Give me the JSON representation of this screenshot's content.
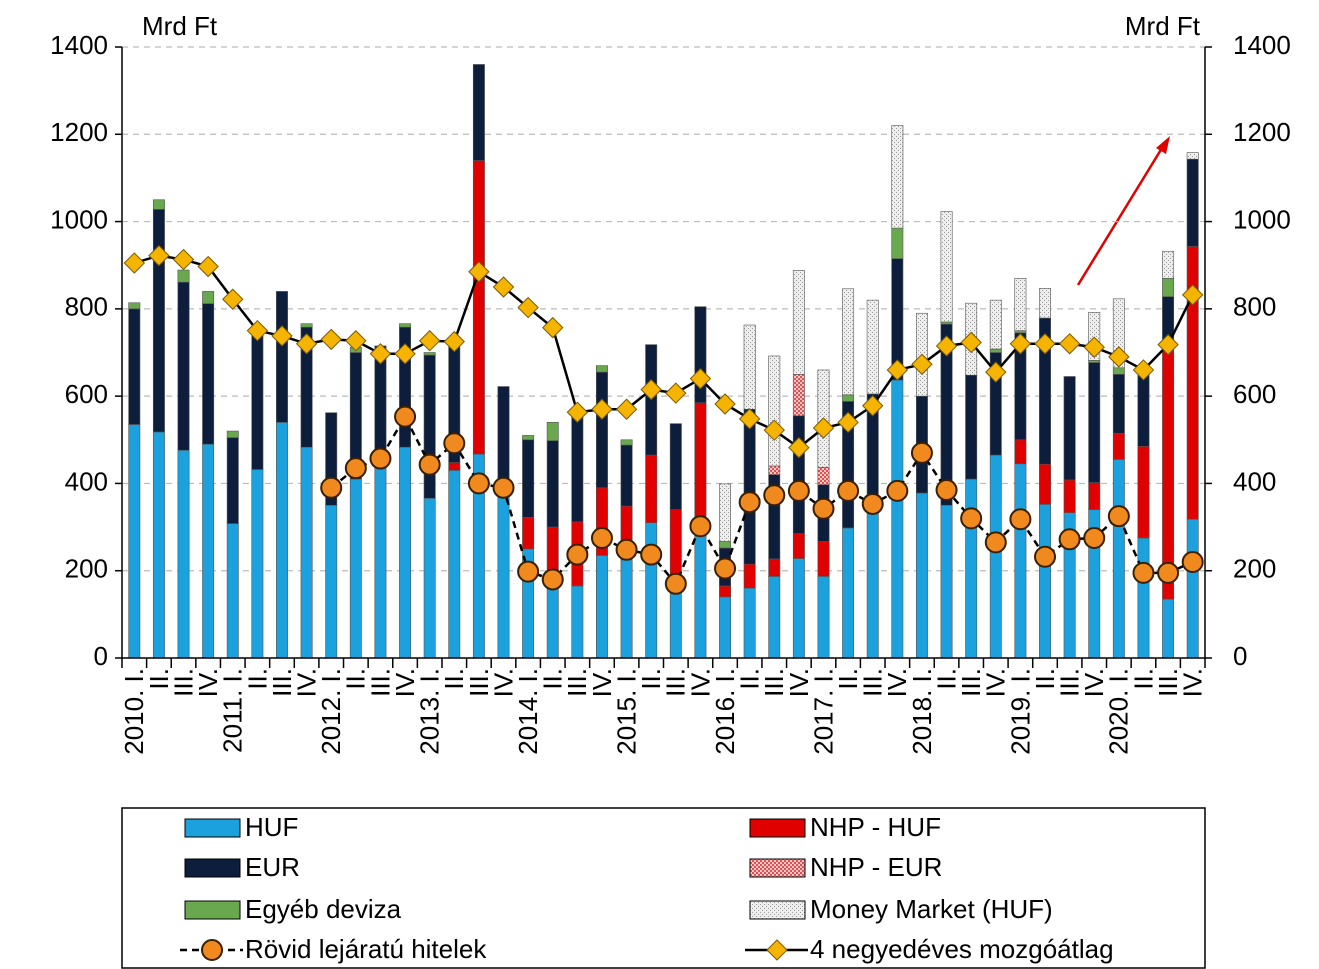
{
  "chart_data": {
    "type": "bar",
    "ylabel": "Mrd Ft",
    "y2label": "Mrd Ft",
    "categories": [
      "2010. I.",
      "II.",
      "III.",
      "IV.",
      "2011. I.",
      "II.",
      "III.",
      "IV.",
      "2012. I.",
      "II.",
      "III.",
      "IV.",
      "2013. I.",
      "II.",
      "III.",
      "IV.",
      "2014. I.",
      "II.",
      "III.",
      "IV.",
      "2015. I.",
      "II.",
      "III.",
      "IV.",
      "2016. I.",
      "II.",
      "III.",
      "IV.",
      "2017. I.",
      "II.",
      "III.",
      "IV.",
      "2018. I.",
      "II.",
      "III.",
      "IV.",
      "2019. I.",
      "II.",
      "III.",
      "IV.",
      "2020. I.",
      "II.",
      "III.",
      "IV."
    ],
    "ylim": [
      0,
      1400
    ],
    "yticks": [
      0,
      200,
      400,
      600,
      800,
      1000,
      1200,
      1400
    ],
    "y2lim": [
      0,
      1400
    ],
    "y2ticks": [
      0,
      200,
      400,
      600,
      800,
      1000,
      1200,
      1400
    ],
    "grid": true,
    "series": [
      {
        "name": "HUF",
        "type": "bar",
        "color": "#1ba1dd",
        "values": [
          535,
          518,
          476,
          490,
          308,
          432,
          540,
          483,
          350,
          410,
          450,
          483,
          366,
          430,
          467,
          372,
          250,
          165,
          165,
          235,
          225,
          310,
          160,
          280,
          140,
          160,
          187,
          228,
          187,
          298,
          340,
          637,
          378,
          350,
          410,
          465,
          445,
          352,
          333,
          340,
          455,
          275,
          135,
          318
        ]
      },
      {
        "name": "NHP - HUF",
        "type": "bar",
        "color": "#e00000",
        "values": [
          0,
          0,
          0,
          0,
          0,
          0,
          0,
          0,
          0,
          0,
          0,
          0,
          0,
          18,
          673,
          0,
          72,
          135,
          147,
          155,
          123,
          155,
          180,
          305,
          25,
          55,
          40,
          57,
          80,
          0,
          0,
          0,
          0,
          0,
          0,
          0,
          55,
          92,
          75,
          62,
          60,
          210,
          590,
          625
        ]
      },
      {
        "name": "EUR",
        "type": "bar",
        "color": "#0c1e3c",
        "values": [
          265,
          510,
          385,
          322,
          197,
          318,
          300,
          275,
          212,
          290,
          265,
          275,
          328,
          272,
          220,
          250,
          178,
          198,
          248,
          265,
          140,
          253,
          197,
          220,
          87,
          355,
          193,
          270,
          130,
          290,
          265,
          278,
          222,
          415,
          238,
          235,
          245,
          335,
          237,
          275,
          135,
          180,
          103,
          200
        ]
      },
      {
        "name": "NHP - EUR",
        "type": "bar",
        "color": "#f4a0a0",
        "pattern": "hatch",
        "values": [
          0,
          0,
          0,
          0,
          0,
          0,
          0,
          0,
          0,
          0,
          0,
          0,
          0,
          0,
          0,
          0,
          0,
          0,
          0,
          0,
          0,
          0,
          0,
          0,
          0,
          0,
          20,
          95,
          40,
          0,
          0,
          0,
          0,
          0,
          0,
          0,
          0,
          0,
          0,
          0,
          0,
          0,
          0,
          0
        ]
      },
      {
        "name": "Egyéb deviza",
        "type": "bar",
        "color": "#6aa84f",
        "values": [
          14,
          22,
          28,
          28,
          15,
          0,
          0,
          8,
          0,
          12,
          0,
          8,
          6,
          0,
          0,
          0,
          10,
          42,
          0,
          15,
          12,
          0,
          0,
          0,
          15,
          0,
          0,
          0,
          0,
          15,
          0,
          70,
          0,
          5,
          0,
          8,
          5,
          0,
          0,
          5,
          15,
          0,
          42,
          0
        ]
      },
      {
        "name": "Money Market (HUF)",
        "type": "bar",
        "color": "#e6e6e6",
        "pattern": "dots",
        "values": [
          0,
          0,
          0,
          0,
          0,
          0,
          0,
          0,
          0,
          0,
          0,
          0,
          0,
          0,
          0,
          0,
          0,
          0,
          0,
          0,
          0,
          0,
          0,
          0,
          132,
          193,
          252,
          238,
          223,
          243,
          215,
          235,
          190,
          253,
          165,
          112,
          120,
          68,
          0,
          110,
          158,
          0,
          62,
          15
        ]
      },
      {
        "name": "Rövid lejáratú hitelek",
        "type": "line",
        "color": "#f08a1e",
        "marker": "circle",
        "dash": true,
        "values": [
          null,
          null,
          null,
          null,
          null,
          null,
          null,
          null,
          390,
          435,
          457,
          553,
          443,
          492,
          400,
          390,
          198,
          180,
          237,
          275,
          248,
          237,
          170,
          302,
          205,
          357,
          373,
          383,
          342,
          383,
          353,
          383,
          470,
          385,
          320,
          265,
          318,
          232,
          272,
          275,
          325,
          195,
          195,
          220
        ]
      },
      {
        "name": "4 negyedéves mozgóátlag",
        "type": "line",
        "color": "#f5b400",
        "marker": "diamond",
        "dash": false,
        "values": [
          905,
          922,
          913,
          897,
          822,
          750,
          738,
          720,
          730,
          727,
          697,
          697,
          727,
          725,
          885,
          850,
          803,
          757,
          563,
          570,
          570,
          615,
          607,
          640,
          582,
          548,
          522,
          482,
          527,
          540,
          578,
          660,
          673,
          715,
          723,
          655,
          720,
          720,
          720,
          712,
          690,
          660,
          718,
          832
        ]
      }
    ]
  }
}
